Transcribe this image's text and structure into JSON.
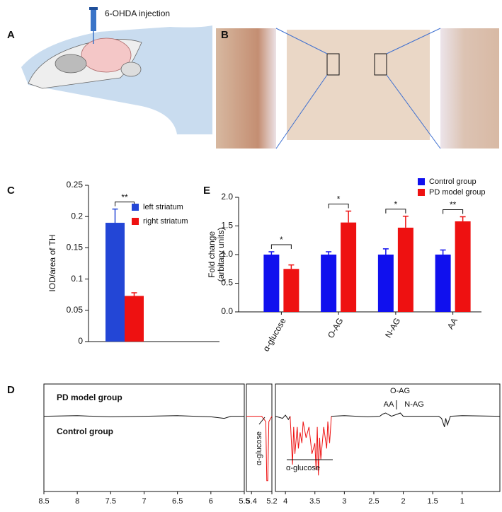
{
  "panel_labels": [
    "A",
    "B",
    "C",
    "D",
    "E"
  ],
  "panel_a": {
    "annotation": "6-OHDA injection"
  },
  "chart_data": [
    {
      "type": "bar",
      "ylabel": [
        "IOD/area of TH"
      ],
      "categories": [
        null
      ],
      "series": [
        {
          "name": "left striatum",
          "color": "#2346d6",
          "values": [
            0.19
          ],
          "errors": [
            0.022
          ]
        },
        {
          "name": "right striatum",
          "color": "#ee1111",
          "values": [
            0.073
          ],
          "errors": [
            0.005
          ]
        }
      ],
      "significance": [
        "**"
      ],
      "ylim": [
        0,
        0.25
      ],
      "yticks": [
        0,
        0.05,
        0.1,
        0.15,
        0.2,
        0.25
      ]
    },
    {
      "type": "bar",
      "ylabel": [
        "Fold change",
        "(arbitary units)"
      ],
      "categories": [
        "α-glucose",
        "O-AG",
        "N-AG",
        "AA"
      ],
      "series": [
        {
          "name": "Control group",
          "color": "#1010ee",
          "values": [
            1.0,
            1.0,
            1.0,
            1.0
          ],
          "errors": [
            0.05,
            0.05,
            0.1,
            0.08
          ]
        },
        {
          "name": "PD model group",
          "color": "#ee1111",
          "values": [
            0.75,
            1.56,
            1.47,
            1.58
          ],
          "errors": [
            0.07,
            0.2,
            0.2,
            0.08
          ]
        }
      ],
      "significance": [
        "*",
        "*",
        "*",
        "**"
      ],
      "ylim": [
        0,
        2.0
      ],
      "yticks": [
        {
          "value": 0,
          "label": "0.0"
        },
        {
          "value": 0.5,
          "label": "0.5"
        },
        {
          "value": 1,
          "label": "1.0"
        },
        {
          "value": 1.5,
          "label": "1.5"
        },
        {
          "value": 2,
          "label": "2.0"
        }
      ]
    },
    {
      "type": "line",
      "group_labels": [
        "PD model group",
        "Control group"
      ],
      "annotations": [
        "O-AG",
        "AA",
        "N-AG",
        "α-glucose",
        "α-glucose"
      ],
      "ylim": [
        -0.7,
        0.3
      ],
      "segments": [
        {
          "xlim": [
            8.5,
            5.5
          ],
          "xticks": [
            8.5,
            8,
            7.5,
            7,
            6.5,
            6,
            5.5
          ],
          "series": [
            {
              "color": "#111111",
              "x": [
                8.5,
                8,
                7.5,
                7,
                6.5,
                6,
                5.8,
                5.7,
                5.5
              ],
              "y": [
                0,
                0.005,
                -0.005,
                0,
                0.005,
                -0.005,
                -0.02,
                0,
                0
              ]
            }
          ]
        },
        {
          "xlim": [
            5.45,
            5.2
          ],
          "xticks": [
            5.4,
            5.2
          ],
          "series": [
            {
              "color": "#ee1111",
              "x": [
                5.45,
                5.3,
                5.26,
                5.25,
                5.24,
                5.23,
                5.2
              ],
              "y": [
                0,
                0,
                -0.05,
                -0.6,
                -0.6,
                -0.05,
                0
              ]
            }
          ]
        },
        {
          "xlim": [
            4.17,
            0.36
          ],
          "xticks": [
            4,
            3.5,
            3,
            2.5,
            2,
            1.5,
            1
          ],
          "series": [
            {
              "color": "#111111",
              "x": [
                4.17,
                4.05,
                4.0,
                3.95,
                3.92
              ],
              "y": [
                0,
                -0.02,
                0.01,
                -0.03,
                0
              ]
            },
            {
              "color": "#ee1111",
              "x": [
                3.92,
                3.88,
                3.86,
                3.84,
                3.8,
                3.78,
                3.75,
                3.72,
                3.7,
                3.65,
                3.6,
                3.55,
                3.5,
                3.48,
                3.46,
                3.44,
                3.42,
                3.4,
                3.35,
                3.3,
                3.28,
                3.25,
                3.22
              ],
              "y": [
                0,
                -0.45,
                -0.1,
                -0.35,
                -0.1,
                -0.3,
                -0.15,
                -0.25,
                -0.05,
                -0.2,
                -0.1,
                -0.35,
                -0.25,
                -0.5,
                -0.1,
                -0.55,
                -0.2,
                -0.4,
                -0.1,
                -0.3,
                -0.05,
                -0.25,
                0
              ]
            },
            {
              "color": "#111111",
              "x": [
                3.22,
                3.0,
                2.6,
                2.4,
                2.35,
                2.3,
                2.2,
                2.1,
                2.05,
                2.0,
                1.8,
                1.4,
                1.35,
                1.3,
                1.28,
                1.25,
                1.2,
                1.0,
                0.36
              ],
              "y": [
                0,
                0.005,
                -0.005,
                0,
                0.02,
                0.03,
                0,
                0.02,
                0.03,
                0,
                0,
                0,
                -0.02,
                -0.1,
                -0.02,
                -0.08,
                0,
                0.005,
                0
              ]
            }
          ]
        }
      ]
    }
  ]
}
